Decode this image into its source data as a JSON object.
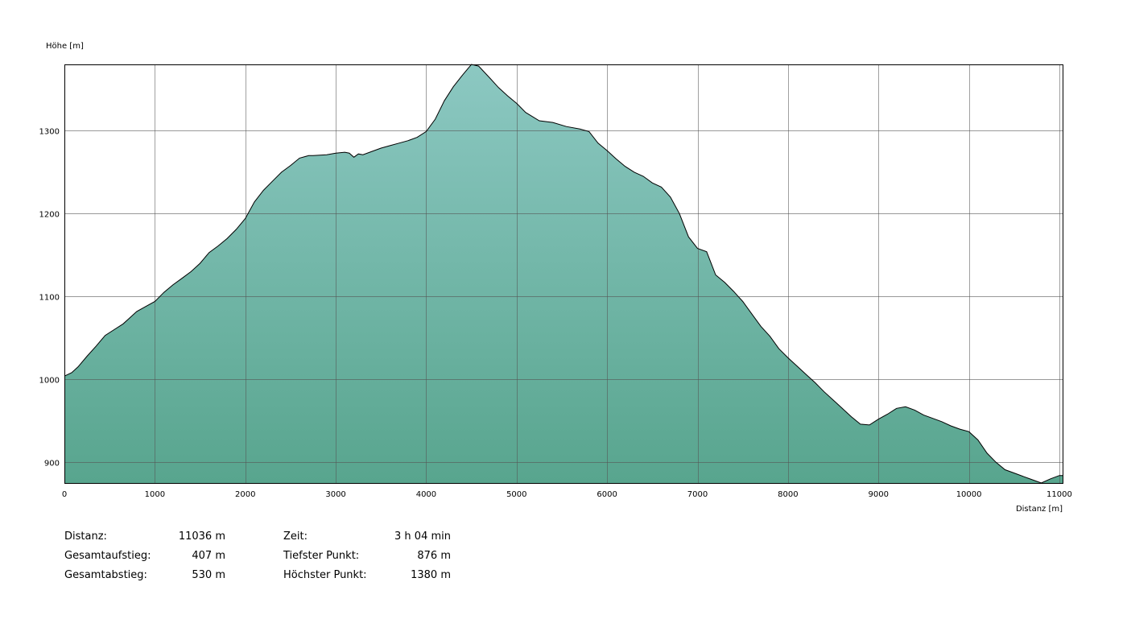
{
  "chart_data": {
    "type": "area",
    "xlabel": "Distanz [m]",
    "ylabel": "Höhe [m]",
    "xlim": [
      0,
      11036
    ],
    "ylim": [
      875,
      1380
    ],
    "x_ticks": [
      0,
      1000,
      2000,
      3000,
      4000,
      5000,
      6000,
      7000,
      8000,
      9000,
      10000,
      11000
    ],
    "y_ticks": [
      900,
      1000,
      1100,
      1200,
      1300
    ],
    "grid": true,
    "fill_color_top": "#8cc8c2",
    "fill_color_bottom": "#58a58e",
    "line_color": "#000000",
    "x": [
      0,
      80,
      150,
      250,
      350,
      450,
      550,
      650,
      700,
      800,
      900,
      1000,
      1100,
      1200,
      1300,
      1400,
      1500,
      1600,
      1700,
      1800,
      1900,
      2000,
      2100,
      2200,
      2300,
      2400,
      2500,
      2600,
      2700,
      2750,
      2900,
      3000,
      3100,
      3150,
      3200,
      3250,
      3300,
      3400,
      3500,
      3600,
      3700,
      3800,
      3900,
      4000,
      4100,
      4200,
      4300,
      4400,
      4500,
      4580,
      4700,
      4800,
      4900,
      5000,
      5100,
      5250,
      5400,
      5550,
      5700,
      5800,
      5900,
      6000,
      6100,
      6200,
      6300,
      6400,
      6500,
      6600,
      6700,
      6800,
      6900,
      7000,
      7100,
      7150,
      7200,
      7300,
      7400,
      7450,
      7500,
      7600,
      7700,
      7800,
      7900,
      8000,
      8100,
      8200,
      8300,
      8400,
      8500,
      8600,
      8700,
      8800,
      8900,
      9000,
      9100,
      9200,
      9300,
      9400,
      9500,
      9600,
      9700,
      9800,
      9900,
      10000,
      10100,
      10200,
      10300,
      10400,
      10500,
      10600,
      10700,
      10800,
      10900,
      11000,
      11036
    ],
    "values": [
      1004,
      1008,
      1015,
      1028,
      1040,
      1053,
      1060,
      1067,
      1072,
      1082,
      1088,
      1094,
      1105,
      1114,
      1122,
      1130,
      1140,
      1153,
      1161,
      1170,
      1181,
      1194,
      1214,
      1228,
      1239,
      1250,
      1258,
      1267,
      1270,
      1270,
      1271,
      1273,
      1274,
      1273,
      1268,
      1272,
      1271,
      1275,
      1279,
      1282,
      1285,
      1288,
      1292,
      1299,
      1314,
      1336,
      1353,
      1367,
      1380,
      1378,
      1364,
      1352,
      1342,
      1333,
      1322,
      1312,
      1310,
      1305,
      1302,
      1299,
      1285,
      1276,
      1266,
      1257,
      1250,
      1245,
      1237,
      1232,
      1220,
      1200,
      1172,
      1158,
      1154,
      1140,
      1126,
      1117,
      1106,
      1100,
      1094,
      1079,
      1064,
      1052,
      1037,
      1026,
      1016,
      1006,
      996,
      985,
      975,
      965,
      955,
      946,
      945,
      952,
      958,
      965,
      967,
      963,
      957,
      953,
      949,
      944,
      940,
      937,
      927,
      911,
      900,
      891,
      887,
      883,
      879,
      875,
      880,
      884,
      884
    ]
  },
  "stats": {
    "distance": {
      "label": "Distanz:",
      "value": "11036 m"
    },
    "ascent": {
      "label": "Gesamtaufstieg:",
      "value": "407 m"
    },
    "descent": {
      "label": "Gesamtabstieg:",
      "value": "530 m"
    },
    "time": {
      "label": "Zeit:",
      "value": "3 h 04 min"
    },
    "lowest": {
      "label": "Tiefster Punkt:",
      "value": "876 m"
    },
    "highest": {
      "label": "Höchster Punkt:",
      "value": "1380 m"
    }
  }
}
